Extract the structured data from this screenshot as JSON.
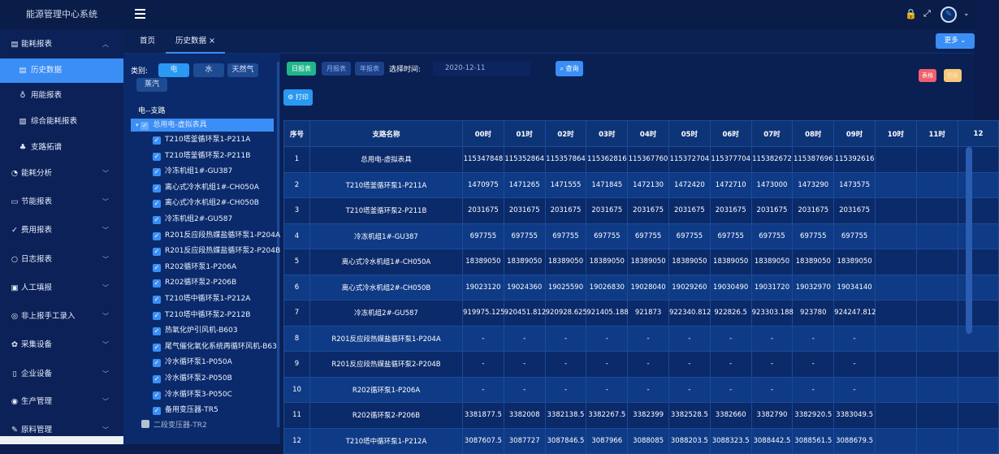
{
  "app": {
    "title": "能源管理中心系统"
  },
  "header": {
    "icons": [
      "menu-icon",
      "lock-icon",
      "fullscreen-icon",
      "avatar",
      "chevron-down-icon"
    ]
  },
  "sidebar": {
    "items": [
      {
        "label": "能耗报表",
        "icon": "report-icon",
        "expanded": true
      },
      {
        "label": "历史数据",
        "icon": "report-icon",
        "sub": true,
        "active": true
      },
      {
        "label": "用能报表",
        "icon": "bell-icon",
        "sub": true
      },
      {
        "label": "综合能耗报表",
        "icon": "document-icon",
        "sub": true
      },
      {
        "label": "支路拓谱",
        "icon": "hierarchy-icon",
        "sub": true
      },
      {
        "label": "能耗分析",
        "icon": "analysis-icon"
      },
      {
        "label": "节能报表",
        "icon": "message-icon"
      },
      {
        "label": "费用报表",
        "icon": "check-shield-icon"
      },
      {
        "label": "日志报表",
        "icon": "chat-icon"
      },
      {
        "label": "人工填报",
        "icon": "image-icon"
      },
      {
        "label": "非上报手工录入",
        "icon": "wechat-icon"
      },
      {
        "label": "采集设备",
        "icon": "gear-icon"
      },
      {
        "label": "企业设备",
        "icon": "phone-icon"
      },
      {
        "label": "生产管理",
        "icon": "target-icon"
      },
      {
        "label": "原料管理",
        "icon": "edit-icon"
      }
    ]
  },
  "tabs": [
    {
      "label": "首页"
    },
    {
      "label": "历史数据",
      "active": true,
      "closable": "×"
    }
  ],
  "more_button": "更多 ⌄",
  "tree": {
    "category_label": "类别:",
    "categories": [
      {
        "label": "电",
        "active": true
      },
      {
        "label": "水"
      },
      {
        "label": "天然气"
      },
      {
        "label": "蒸汽"
      }
    ],
    "section": "电--支路",
    "root": "总用电-虚拟表具",
    "nodes": [
      "T210塔釜循环泵1-P211A",
      "T210塔釜循环泵2-P211B",
      "冷冻机组1#-GU387",
      "离心式冷水机组1#-CH050A",
      "离心式冷水机组2#-CH050B",
      "冷冻机组2#-GU587",
      "R201反应段热媒盐循环泵1-P204A",
      "R201反应段热媒盐循环泵2-P204B",
      "R202循环泵1-P206A",
      "R202循环泵2-P206B",
      "T210塔中循环泵1-P212A",
      "T210塔中循环泵2-P212B",
      "热氧化炉引风机-B603",
      "尾气催化氧化系统再循环风机-B63",
      "冷水循环泵1-P050A",
      "冷水循环泵2-P050B",
      "冷水循环泵3-P050C",
      "备用变压器-TR5"
    ],
    "next_root": "二段变压器-TR2"
  },
  "toolbar": {
    "daily": "日报表",
    "monthly": "月报表",
    "yearly": "年报表",
    "time_label": "选择时间:",
    "date": "2020-12-11",
    "query": "查询",
    "print": "打印",
    "table_btn": "表格",
    "chart_btn": "图表"
  },
  "table": {
    "headers": [
      "序号",
      "支路名称",
      "00时",
      "01时",
      "02时",
      "03时",
      "04时",
      "05时",
      "06时",
      "07时",
      "08时",
      "09时",
      "10时",
      "11时",
      "12"
    ],
    "rows": [
      [
        "1",
        "总用电-虚拟表具",
        "115347848",
        "115352864",
        "115357864",
        "115362816",
        "115367760",
        "115372704",
        "115377704",
        "115382672",
        "115387696",
        "115392616",
        "",
        ""
      ],
      [
        "2",
        "T210塔釜循环泵1-P211A",
        "1470975",
        "1471265",
        "1471555",
        "1471845",
        "1472130",
        "1472420",
        "1472710",
        "1473000",
        "1473290",
        "1473575",
        "",
        ""
      ],
      [
        "3",
        "T210塔釜循环泵2-P211B",
        "2031675",
        "2031675",
        "2031675",
        "2031675",
        "2031675",
        "2031675",
        "2031675",
        "2031675",
        "2031675",
        "2031675",
        "",
        ""
      ],
      [
        "4",
        "冷冻机组1#-GU387",
        "697755",
        "697755",
        "697755",
        "697755",
        "697755",
        "697755",
        "697755",
        "697755",
        "697755",
        "697755",
        "",
        ""
      ],
      [
        "5",
        "离心式冷水机组1#-CH050A",
        "18389050",
        "18389050",
        "18389050",
        "18389050",
        "18389050",
        "18389050",
        "18389050",
        "18389050",
        "18389050",
        "18389050",
        "",
        ""
      ],
      [
        "6",
        "离心式冷水机组2#-CH050B",
        "19023120",
        "19024360",
        "19025590",
        "19026830",
        "19028040",
        "19029260",
        "19030490",
        "19031720",
        "19032970",
        "19034140",
        "",
        ""
      ],
      [
        "7",
        "冷冻机组2#-GU587",
        "919975.125",
        "920451.812",
        "920928.625",
        "921405.188",
        "921873",
        "922340.812",
        "922826.5",
        "923303.188",
        "923780",
        "924247.812",
        "",
        ""
      ],
      [
        "8",
        "R201反应段热媒盐循环泵1-P204A",
        "-",
        "-",
        "-",
        "-",
        "-",
        "-",
        "-",
        "-",
        "-",
        "-",
        "",
        ""
      ],
      [
        "9",
        "R201反应段热媒盐循环泵2-P204B",
        "-",
        "-",
        "-",
        "-",
        "-",
        "-",
        "-",
        "-",
        "-",
        "-",
        "",
        ""
      ],
      [
        "10",
        "R202循环泵1-P206A",
        "-",
        "-",
        "-",
        "-",
        "-",
        "-",
        "-",
        "-",
        "-",
        "-",
        "",
        ""
      ],
      [
        "11",
        "R202循环泵2-P206B",
        "3381877.5",
        "3382008",
        "3382138.5",
        "3382267.5",
        "3382399",
        "3382528.5",
        "3382660",
        "3382790",
        "3382920.5",
        "3383049.5",
        "",
        ""
      ],
      [
        "12",
        "T210塔中循环泵1-P212A",
        "3087607.5",
        "3087727",
        "3087846.5",
        "3087966",
        "3088085",
        "3088203.5",
        "3088323.5",
        "3088442.5",
        "3088561.5",
        "3088679.5",
        "",
        ""
      ]
    ]
  },
  "colors": {
    "accent": "#3b8ef5",
    "green": "#21b68a",
    "red": "#f0606a",
    "orange": "#f7c77a"
  }
}
